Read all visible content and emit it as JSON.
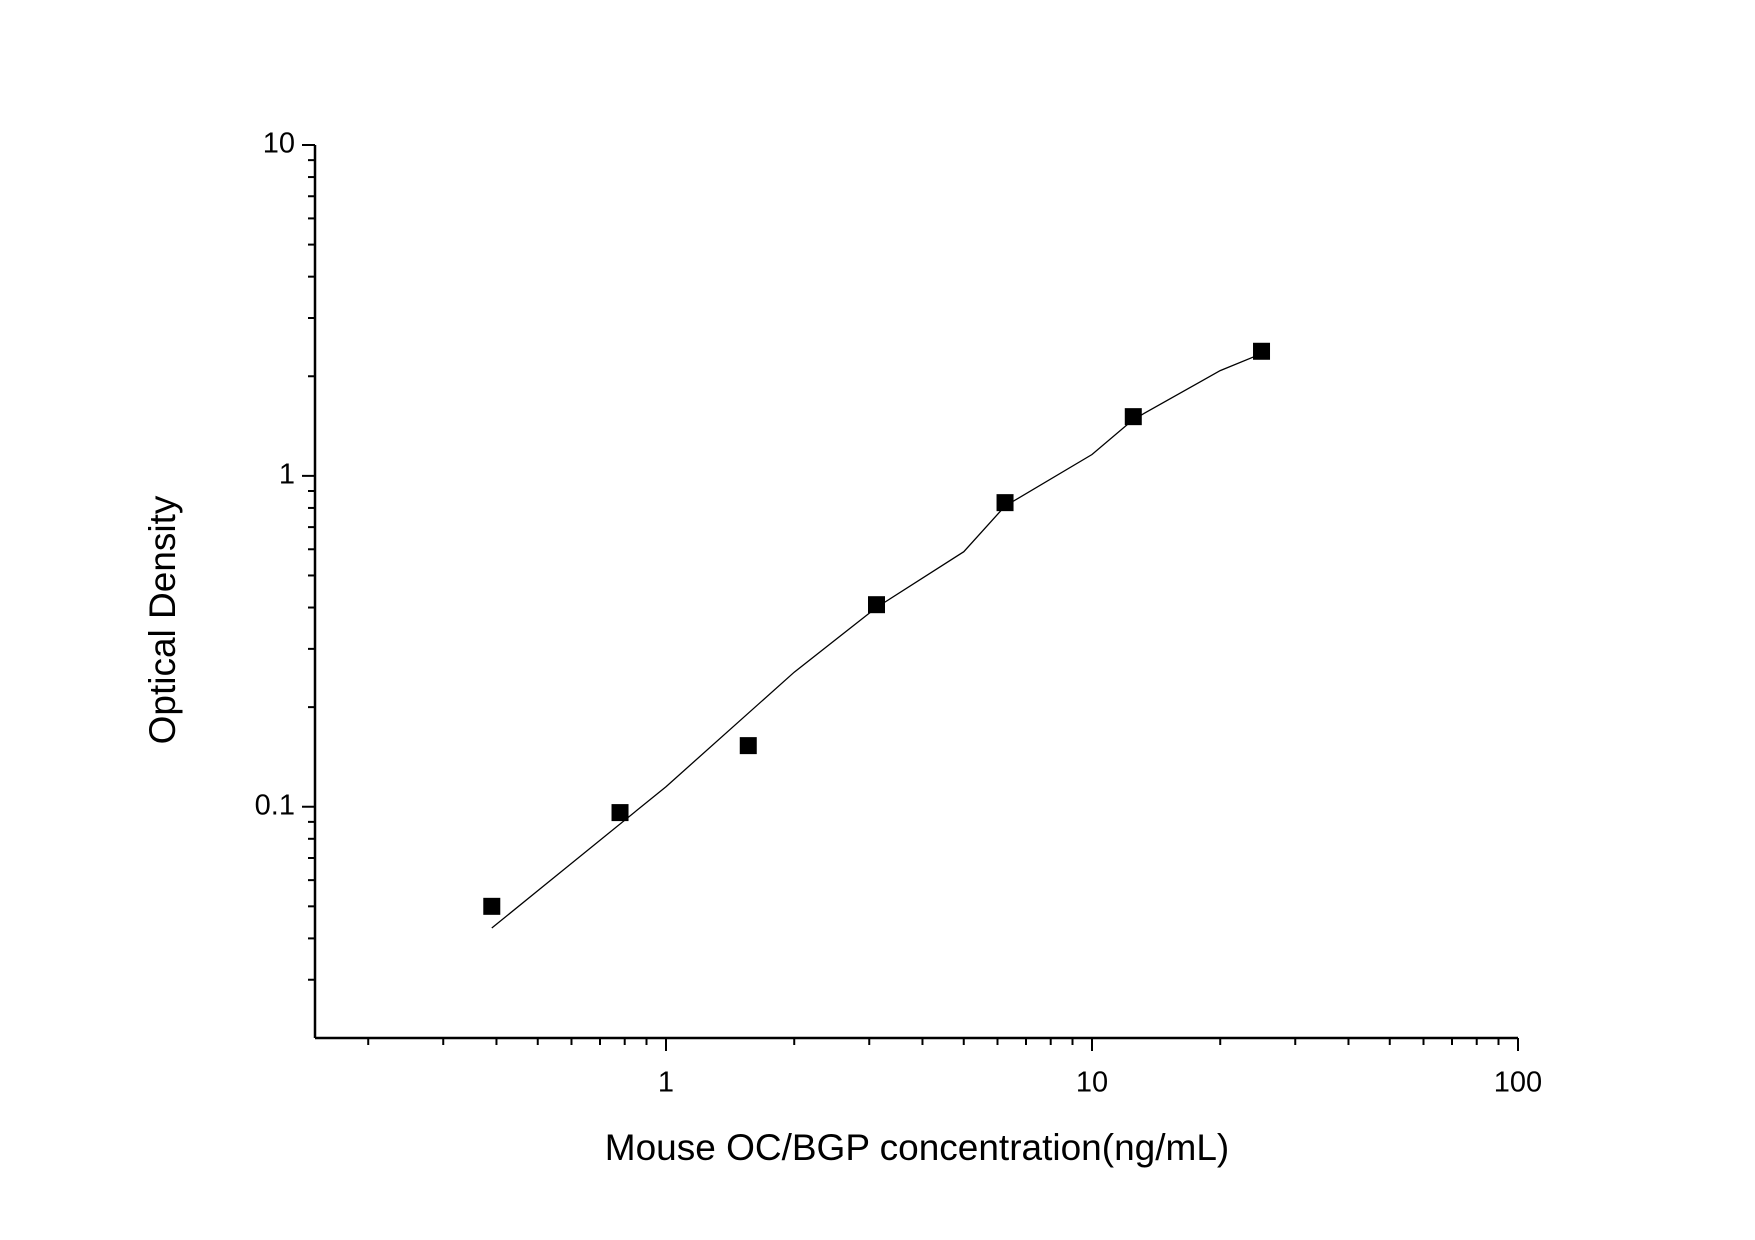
{
  "chart_data": {
    "type": "scatter",
    "x_label": "Mouse OC/BGP concentration(ng/mL)",
    "y_label": "Optical Density",
    "x": [
      0.39,
      0.78,
      1.56,
      3.12,
      6.25,
      12.5,
      25
    ],
    "values": [
      0.05,
      0.096,
      0.153,
      0.408,
      0.83,
      1.51,
      2.38
    ],
    "color": "#000000",
    "fit": {
      "x": [
        0.39,
        1,
        2,
        3.12,
        5,
        6.25,
        10,
        12.5,
        20,
        25
      ],
      "values": [
        0.043,
        0.115,
        0.255,
        0.4,
        0.59,
        0.81,
        1.16,
        1.48,
        2.08,
        2.34
      ]
    },
    "xlog": true,
    "ylog": true,
    "xlim": [
      0.15,
      100
    ],
    "ylim": [
      0.02,
      10
    ],
    "xticks": [
      1,
      10,
      100
    ],
    "yticks": [
      0.1,
      1,
      10
    ],
    "xminorticks": [
      0.2,
      0.3,
      0.4,
      0.5,
      0.6,
      0.7,
      0.8,
      0.9,
      2,
      3,
      4,
      5,
      6,
      7,
      8,
      9,
      20,
      30,
      40,
      50,
      60,
      70,
      80,
      90
    ],
    "yminorticks": [
      0.03,
      0.04,
      0.05,
      0.06,
      0.07,
      0.08,
      0.09,
      0.2,
      0.3,
      0.4,
      0.5,
      0.6,
      0.7,
      0.8,
      0.9,
      2,
      3,
      4,
      5,
      6,
      7,
      8,
      9
    ],
    "grid": false
  }
}
